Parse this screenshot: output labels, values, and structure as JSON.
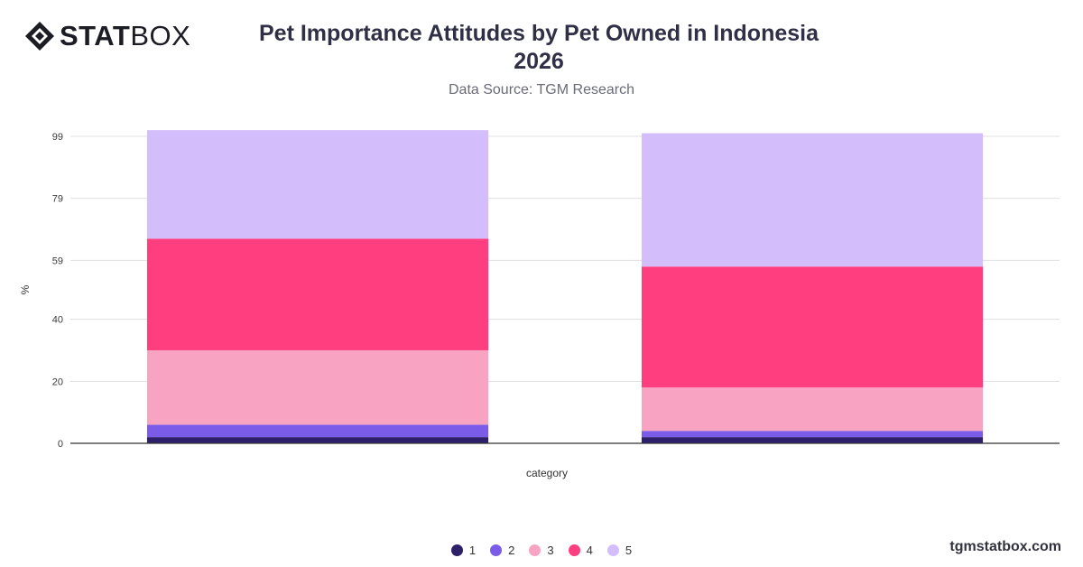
{
  "brand": {
    "logo_bold": "STAT",
    "logo_light": "BOX",
    "footer": "tgmstatbox.com"
  },
  "header": {
    "title_line1": "Pet Importance Attitudes by Pet Owned in Indonesia",
    "title_line2": "2026",
    "subtitle": "Data Source: TGM Research"
  },
  "colors": {
    "1": "#2e1f6b",
    "2": "#7a5ce8",
    "3": "#f9a3c3",
    "4": "#ff3e7f",
    "5": "#d3bdfb"
  },
  "chart_data": {
    "type": "bar",
    "stacked": true,
    "title": "Pet Importance Attitudes by Pet Owned in Indonesia 2026",
    "subtitle": "Data Source: TGM Research",
    "xlabel": "category",
    "ylabel": "%",
    "categories": [
      "",
      ""
    ],
    "ylim": [
      0,
      99
    ],
    "yticks": [
      0,
      20,
      40,
      59,
      79,
      99
    ],
    "grid": true,
    "legend_position": "bottom",
    "series": [
      {
        "name": "1",
        "values": [
          2,
          2
        ]
      },
      {
        "name": "2",
        "values": [
          4,
          2
        ]
      },
      {
        "name": "3",
        "values": [
          24,
          14
        ]
      },
      {
        "name": "4",
        "values": [
          36,
          39
        ]
      },
      {
        "name": "5",
        "values": [
          35,
          43
        ]
      }
    ]
  }
}
